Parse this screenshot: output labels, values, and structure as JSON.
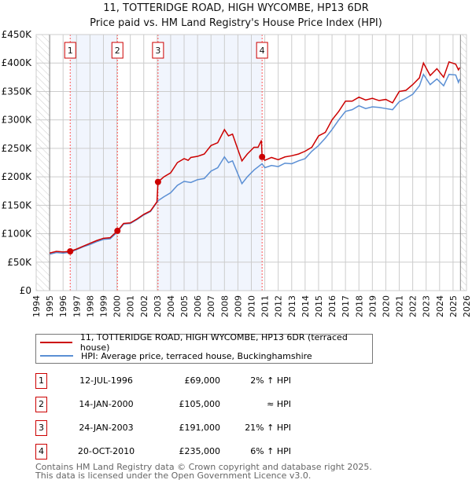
{
  "chart_data": {
    "type": "line",
    "title": "11, TOTTERIDGE ROAD, HIGH WYCOMBE, HP13 6DR",
    "subtitle": "Price paid vs. HM Land Registry's House Price Index (HPI)",
    "xlim": [
      1994,
      2026
    ],
    "ylim": [
      0,
      450000
    ],
    "x_ticks": [
      "1994",
      "1995",
      "1996",
      "1997",
      "1998",
      "1999",
      "2000",
      "2001",
      "2002",
      "2003",
      "2004",
      "2005",
      "2006",
      "2007",
      "2008",
      "2009",
      "2010",
      "2011",
      "2012",
      "2013",
      "2014",
      "2015",
      "2016",
      "2017",
      "2018",
      "2019",
      "2020",
      "2021",
      "2022",
      "2023",
      "2024",
      "2025",
      "2026"
    ],
    "y_ticks": [
      {
        "v": 0,
        "label": "£0"
      },
      {
        "v": 50000,
        "label": "£50K"
      },
      {
        "v": 100000,
        "label": "£100K"
      },
      {
        "v": 150000,
        "label": "£150K"
      },
      {
        "v": 200000,
        "label": "£200K"
      },
      {
        "v": 250000,
        "label": "£250K"
      },
      {
        "v": 300000,
        "label": "£300K"
      },
      {
        "v": 350000,
        "label": "£350K"
      },
      {
        "v": 400000,
        "label": "£400K"
      },
      {
        "v": 450000,
        "label": "£450K"
      }
    ],
    "grid": true,
    "data_range": [
      1995,
      2025.55
    ],
    "series": [
      {
        "name": "11, TOTTERIDGE ROAD, HIGH WYCOMBE, HP13 6DR (terraced house)",
        "color": "#cc0000",
        "x": [
          1995,
          1995.5,
          1996,
          1996.53,
          1997,
          1997.5,
          1998,
          1998.5,
          1999,
          1999.5,
          2000.04,
          2000.5,
          2001,
          2001.5,
          2002,
          2002.5,
          2002.98,
          2003.06,
          2003.5,
          2004,
          2004.5,
          2005,
          2005.3,
          2005.5,
          2006,
          2006.5,
          2007,
          2007.5,
          2008,
          2008.3,
          2008.6,
          2009,
          2009.3,
          2009.7,
          2010.2,
          2010.5,
          2010.75,
          2010.8,
          2011,
          2011.5,
          2012,
          2012.5,
          2013,
          2013.5,
          2014,
          2014.5,
          2015,
          2015.5,
          2016,
          2016.5,
          2017,
          2017.5,
          2018,
          2018.5,
          2019,
          2019.5,
          2020,
          2020.5,
          2021,
          2021.5,
          2022,
          2022.5,
          2022.8,
          2023.3,
          2023.8,
          2024.3,
          2024.7,
          2025.2,
          2025.4,
          2025.5
        ],
        "y": [
          66000,
          69000,
          68000,
          69000,
          73000,
          78000,
          83000,
          88000,
          92000,
          93000,
          105000,
          118000,
          119000,
          126000,
          134000,
          140000,
          156000,
          191000,
          200000,
          207000,
          225000,
          232000,
          229000,
          234000,
          236000,
          240000,
          255000,
          260000,
          283000,
          272000,
          275000,
          248000,
          228000,
          240000,
          252000,
          252000,
          264000,
          235000,
          229000,
          234000,
          230000,
          235000,
          237000,
          240000,
          245000,
          252000,
          272000,
          278000,
          300000,
          315000,
          333000,
          333000,
          340000,
          335000,
          338000,
          334000,
          336000,
          330000,
          350000,
          352000,
          362000,
          374000,
          400000,
          378000,
          390000,
          375000,
          402000,
          398000,
          388000,
          392000
        ]
      },
      {
        "name": "HPI: Average price, terraced house, Buckinghamshire",
        "color": "#5b8fd4",
        "x": [
          1995,
          1995.5,
          1996,
          1996.53,
          1997,
          1997.5,
          1998,
          1998.5,
          1999,
          1999.5,
          2000.04,
          2000.5,
          2001,
          2001.5,
          2002,
          2002.5,
          2003.06,
          2003.5,
          2004,
          2004.5,
          2005,
          2005.5,
          2006,
          2006.5,
          2007,
          2007.5,
          2008,
          2008.3,
          2008.6,
          2009,
          2009.3,
          2009.7,
          2010.2,
          2010.8,
          2011,
          2011.5,
          2012,
          2012.5,
          2013,
          2013.5,
          2014,
          2014.5,
          2015,
          2015.5,
          2016,
          2016.5,
          2017,
          2017.5,
          2018,
          2018.5,
          2019,
          2019.5,
          2020,
          2020.5,
          2021,
          2021.5,
          2022,
          2022.5,
          2022.8,
          2023.3,
          2023.8,
          2024.3,
          2024.7,
          2025.2,
          2025.4,
          2025.5
        ],
        "y": [
          64000,
          67000,
          66000,
          67500,
          72000,
          77000,
          81000,
          86000,
          90000,
          91000,
          103000,
          117000,
          118000,
          125000,
          133000,
          139000,
          158000,
          165000,
          172000,
          185000,
          192000,
          190000,
          195000,
          197000,
          210000,
          216000,
          235000,
          225000,
          228000,
          205000,
          188000,
          200000,
          212000,
          223000,
          216000,
          220000,
          218000,
          224000,
          223000,
          228000,
          232000,
          245000,
          255000,
          268000,
          283000,
          300000,
          315000,
          318000,
          325000,
          320000,
          323000,
          322000,
          320000,
          318000,
          332000,
          338000,
          345000,
          360000,
          380000,
          362000,
          372000,
          360000,
          380000,
          379000,
          366000,
          372000
        ]
      }
    ],
    "sales": [
      {
        "n": "1",
        "x": 1996.53,
        "date": "12-JUL-1996",
        "price_value": 69000,
        "price": "£69,000",
        "hpi": "2% ↑ HPI"
      },
      {
        "n": "2",
        "x": 2000.04,
        "date": "14-JAN-2000",
        "price_value": 105000,
        "price": "£105,000",
        "hpi": "≈ HPI"
      },
      {
        "n": "3",
        "x": 2003.06,
        "date": "24-JAN-2003",
        "price_value": 191000,
        "price": "£191,000",
        "hpi": "21% ↑ HPI"
      },
      {
        "n": "4",
        "x": 2010.8,
        "date": "20-OCT-2010",
        "price_value": 235000,
        "price": "£235,000",
        "hpi": "6% ↑ HPI"
      }
    ],
    "legend_placement": "below"
  },
  "footer": {
    "line1": "Contains HM Land Registry data © Crown copyright and database right 2025.",
    "line2": "This data is licensed under the Open Government Licence v3.0."
  }
}
